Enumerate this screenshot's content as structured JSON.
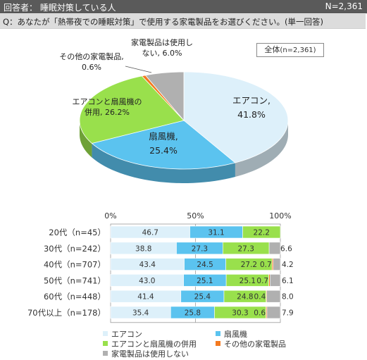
{
  "header": {
    "respondents": "回答者： 睡眠対策している人",
    "sample_size": "N=2,361"
  },
  "question": "Q：あなたが「熱帯夜での睡眠対策」で使用する家電製品をお選びください。(単一回答)",
  "colors": {
    "aircon": "#ddf0fa",
    "fan": "#5bc3ef",
    "both": "#99e04c",
    "other": "#f47a20",
    "none": "#b0b0b0"
  },
  "chart_data": [
    {
      "type": "pie",
      "title": "全体",
      "sample_label": "(n=2,361)",
      "slices": [
        {
          "key": "aircon",
          "label_line1": "エアコン,",
          "label_line2": "41.8%",
          "value": 41.8
        },
        {
          "key": "fan",
          "label_line1": "扇風機,",
          "label_line2": "25.4%",
          "value": 25.4
        },
        {
          "key": "both",
          "label_line1": "エアコンと扇風機の",
          "label_line2": "併用, 26.2%",
          "value": 26.2
        },
        {
          "key": "other",
          "label_line1": "その他の家電製品,",
          "label_line2": "0.6%",
          "value": 0.6
        },
        {
          "key": "none",
          "label_line1": "家電製品は使用し",
          "label_line2": "ない, 6.0%",
          "value": 6.0
        }
      ]
    },
    {
      "type": "bar",
      "orientation": "horizontal",
      "stacked": true,
      "xlim": [
        0,
        100
      ],
      "x_ticks": [
        "0%",
        "50%",
        "100%"
      ],
      "categories": [
        "20代（n=45）",
        "30代（n=242）",
        "40代（n=707）",
        "50代（n=741）",
        "60代（n=448）",
        "70代以上（n=178）"
      ],
      "series": [
        {
          "key": "aircon",
          "name": "エアコン",
          "values": [
            46.7,
            38.8,
            43.4,
            43.0,
            41.4,
            35.4
          ],
          "labels": [
            "46.7",
            "38.8",
            "43.4",
            "43.0",
            "41.4",
            "35.4"
          ]
        },
        {
          "key": "fan",
          "name": "扇風機",
          "values": [
            31.1,
            27.3,
            24.5,
            25.1,
            25.4,
            25.8
          ],
          "labels": [
            "31.1",
            "27.3",
            "24.5",
            "25.1",
            "25.4",
            "25.8"
          ]
        },
        {
          "key": "both",
          "name": "エアコンと扇風機の併用",
          "values": [
            22.2,
            27.3,
            27.2,
            25.1,
            24.8,
            30.3
          ],
          "labels": [
            "22.2",
            "27.3",
            "27.2",
            "25.1",
            "24.8",
            "30.3"
          ]
        },
        {
          "key": "other",
          "name": "その他の家電製品",
          "values": [
            0.0,
            0.0,
            0.7,
            0.7,
            0.4,
            0.6
          ],
          "labels": [
            "",
            "",
            "0.7",
            "0.7",
            "0.4",
            "0.6"
          ]
        },
        {
          "key": "none",
          "name": "家電製品は使用しない",
          "values": [
            0.0,
            6.6,
            4.2,
            6.1,
            8.0,
            7.9
          ],
          "labels": [
            "",
            "6.6",
            "4.2",
            "6.1",
            "8.0",
            "7.9"
          ]
        }
      ]
    }
  ]
}
